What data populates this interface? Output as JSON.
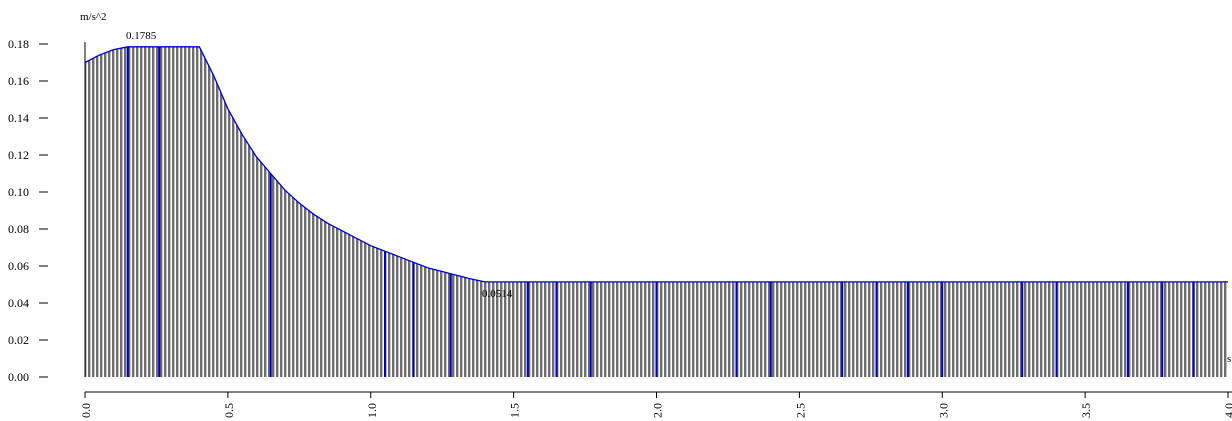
{
  "chart_data": {
    "type": "area",
    "title": "",
    "xlabel": "",
    "ylabel": "",
    "y_unit": "m/s^2",
    "x_unit": "s",
    "xlim": [
      0.0,
      4.0
    ],
    "ylim": [
      0.0,
      0.18
    ],
    "x_ticks": [
      "0.0",
      "0.5",
      "1.0",
      "1.5",
      "2.0",
      "2.5",
      "3.0",
      "3.5",
      "4.0"
    ],
    "y_ticks": [
      "0.00",
      "0.02",
      "0.04",
      "0.06",
      "0.08",
      "0.10",
      "0.12",
      "0.14",
      "0.16",
      "0.18"
    ],
    "series": [
      {
        "x": [
          0.0,
          0.05,
          0.1,
          0.15,
          0.25,
          0.35,
          0.4,
          0.45,
          0.5,
          0.55,
          0.6,
          0.65,
          0.7,
          0.75,
          0.8,
          0.85,
          0.9,
          0.95,
          1.0,
          1.05,
          1.1,
          1.15,
          1.2,
          1.25,
          1.3,
          1.35,
          1.4,
          1.5,
          2.0,
          2.5,
          3.0,
          3.5,
          4.0
        ],
        "y": [
          0.17,
          0.174,
          0.177,
          0.1785,
          0.1785,
          0.1785,
          0.1785,
          0.163,
          0.145,
          0.131,
          0.119,
          0.11,
          0.101,
          0.094,
          0.088,
          0.083,
          0.079,
          0.075,
          0.071,
          0.068,
          0.065,
          0.062,
          0.059,
          0.057,
          0.055,
          0.053,
          0.0514,
          0.0514,
          0.0514,
          0.0514,
          0.0514,
          0.0514,
          0.0514
        ]
      }
    ],
    "annotations": [
      {
        "text": "0.1785",
        "x": 0.14,
        "y": 0.1785
      },
      {
        "text": "0.0514",
        "x": 1.4,
        "y": 0.0514
      }
    ],
    "highlight_x": [
      0.15,
      0.26,
      0.65,
      1.05,
      1.15,
      1.28,
      1.55,
      1.65,
      1.77,
      2.0,
      2.28,
      2.4,
      2.65,
      2.77,
      2.88,
      3.0,
      3.28,
      3.4,
      3.65,
      3.77,
      3.88
    ],
    "colors": {
      "line": "#0000cc",
      "fill_stripe_dark": "#6e6e6e",
      "fill_stripe_light": "#ffffff",
      "axis": "#000000"
    },
    "grid": false
  }
}
